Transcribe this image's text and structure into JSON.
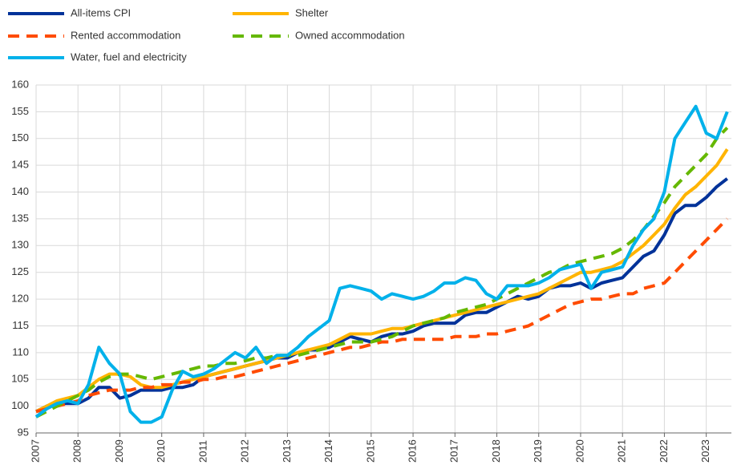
{
  "chart_data": {
    "type": "line",
    "x": [
      2007,
      2007.25,
      2007.5,
      2007.75,
      2008,
      2008.25,
      2008.5,
      2008.75,
      2009,
      2009.25,
      2009.5,
      2009.75,
      2010,
      2010.25,
      2010.5,
      2010.75,
      2011,
      2011.25,
      2011.5,
      2011.75,
      2012,
      2012.25,
      2012.5,
      2012.75,
      2013,
      2013.25,
      2013.5,
      2013.75,
      2014,
      2014.25,
      2014.5,
      2014.75,
      2015,
      2015.25,
      2015.5,
      2015.75,
      2016,
      2016.25,
      2016.5,
      2016.75,
      2017,
      2017.25,
      2017.5,
      2017.75,
      2018,
      2018.25,
      2018.5,
      2018.75,
      2019,
      2019.25,
      2019.5,
      2019.75,
      2020,
      2020.25,
      2020.5,
      2020.75,
      2021,
      2021.25,
      2021.5,
      2021.75,
      2022,
      2022.25,
      2022.5,
      2022.75,
      2023,
      2023.25,
      2023.5
    ],
    "xlim": [
      2007,
      2023.6
    ],
    "xticks": [
      2007,
      2008,
      2009,
      2010,
      2011,
      2012,
      2013,
      2014,
      2015,
      2016,
      2017,
      2018,
      2019,
      2020,
      2021,
      2022,
      2023
    ],
    "ylim": [
      95,
      160
    ],
    "yticks": [
      95,
      100,
      105,
      110,
      115,
      120,
      125,
      130,
      135,
      140,
      145,
      150,
      155,
      160
    ],
    "grid": true,
    "series": [
      {
        "name": "All-items CPI",
        "color": "#003299",
        "dashed": false,
        "values": [
          99,
          100,
          100.5,
          100.5,
          100.5,
          101.5,
          103.5,
          103.5,
          101.5,
          102,
          103,
          103,
          103,
          103.5,
          103.5,
          104,
          105.5,
          106,
          106.5,
          107,
          107.5,
          108,
          108.5,
          109,
          109,
          110,
          110.5,
          110.5,
          111,
          112,
          113,
          112.5,
          112,
          113,
          113.5,
          113.5,
          114,
          115,
          115.5,
          115.5,
          115.5,
          117,
          117.5,
          117.5,
          118.5,
          119.5,
          120.5,
          120,
          120.5,
          122,
          122.5,
          122.5,
          123,
          122,
          123,
          123.5,
          124,
          126,
          128,
          129,
          132,
          136,
          137.5,
          137.5,
          139,
          141,
          142.5
        ]
      },
      {
        "name": "Shelter",
        "color": "#ffb400",
        "dashed": false,
        "values": [
          99,
          100,
          101,
          101.5,
          102,
          103.5,
          105,
          106,
          106,
          105.5,
          104,
          103.5,
          103.5,
          104,
          104.5,
          105,
          105.5,
          106,
          106.5,
          107,
          107.5,
          108,
          108.5,
          109,
          109.5,
          110,
          110.5,
          111,
          111.5,
          112.5,
          113.5,
          113.5,
          113.5,
          114,
          114.5,
          114.5,
          115,
          115.5,
          116,
          116.5,
          117,
          117.5,
          118,
          118.5,
          119,
          119.5,
          120,
          120.5,
          121,
          122,
          123,
          124,
          125,
          125,
          125.5,
          126,
          127,
          128.5,
          130,
          132,
          134,
          137,
          139.5,
          141,
          143,
          145,
          148
        ]
      },
      {
        "name": "Rented accommodation",
        "color": "#ff4b00",
        "dashed": true,
        "values": [
          99,
          99.5,
          100,
          100.5,
          101,
          102,
          102.5,
          103,
          103,
          103,
          103.5,
          103.5,
          104,
          104,
          104.5,
          104.5,
          105,
          105,
          105.5,
          105.5,
          106,
          106.5,
          107,
          107.5,
          108,
          108.5,
          109,
          109.5,
          110,
          110.5,
          111,
          111,
          111.5,
          112,
          112,
          112.5,
          112.5,
          112.5,
          112.5,
          112.5,
          113,
          113,
          113,
          113.5,
          113.5,
          114,
          114.5,
          115,
          116,
          117,
          118,
          119,
          119.5,
          120,
          120,
          120.5,
          121,
          121,
          122,
          122.5,
          123,
          125,
          127,
          129,
          131,
          133,
          135
        ]
      },
      {
        "name": "Owned accommodation",
        "color": "#65b800",
        "dashed": true,
        "values": [
          98,
          99,
          100,
          101,
          102,
          103,
          104.5,
          105.5,
          106,
          106,
          105.5,
          105,
          105.5,
          106,
          106.5,
          107,
          107.5,
          107.5,
          108,
          108,
          108.5,
          109,
          109,
          109.5,
          109.5,
          109.5,
          110,
          110.5,
          111,
          111.5,
          112,
          112,
          112,
          112.5,
          113,
          114,
          115,
          115.5,
          116,
          116.5,
          117.5,
          118,
          118.5,
          119,
          120,
          121,
          122,
          123,
          124,
          125,
          125.5,
          126.5,
          127,
          127.5,
          128,
          128.5,
          129.5,
          131,
          133,
          135.5,
          138,
          141,
          143,
          145,
          147,
          150,
          152
        ]
      },
      {
        "name": "Water, fuel and electricity",
        "color": "#00b1ea",
        "dashed": false,
        "values": [
          98,
          99.5,
          100.5,
          101,
          100.5,
          104,
          111,
          108,
          106,
          99,
          97,
          97,
          98,
          103,
          106.5,
          105.5,
          106,
          107,
          108.5,
          110,
          109,
          111,
          108,
          109.5,
          109.5,
          111,
          113,
          114.5,
          116,
          122,
          122.5,
          122,
          121.5,
          120,
          121,
          120.5,
          120,
          120.5,
          121.5,
          123,
          123,
          124,
          123.5,
          121,
          120,
          122.5,
          122.5,
          122.5,
          123,
          124,
          125.5,
          126,
          126.5,
          122,
          125,
          125.5,
          126,
          130,
          133,
          135,
          140,
          150,
          153,
          156,
          151,
          150,
          155
        ]
      }
    ]
  }
}
